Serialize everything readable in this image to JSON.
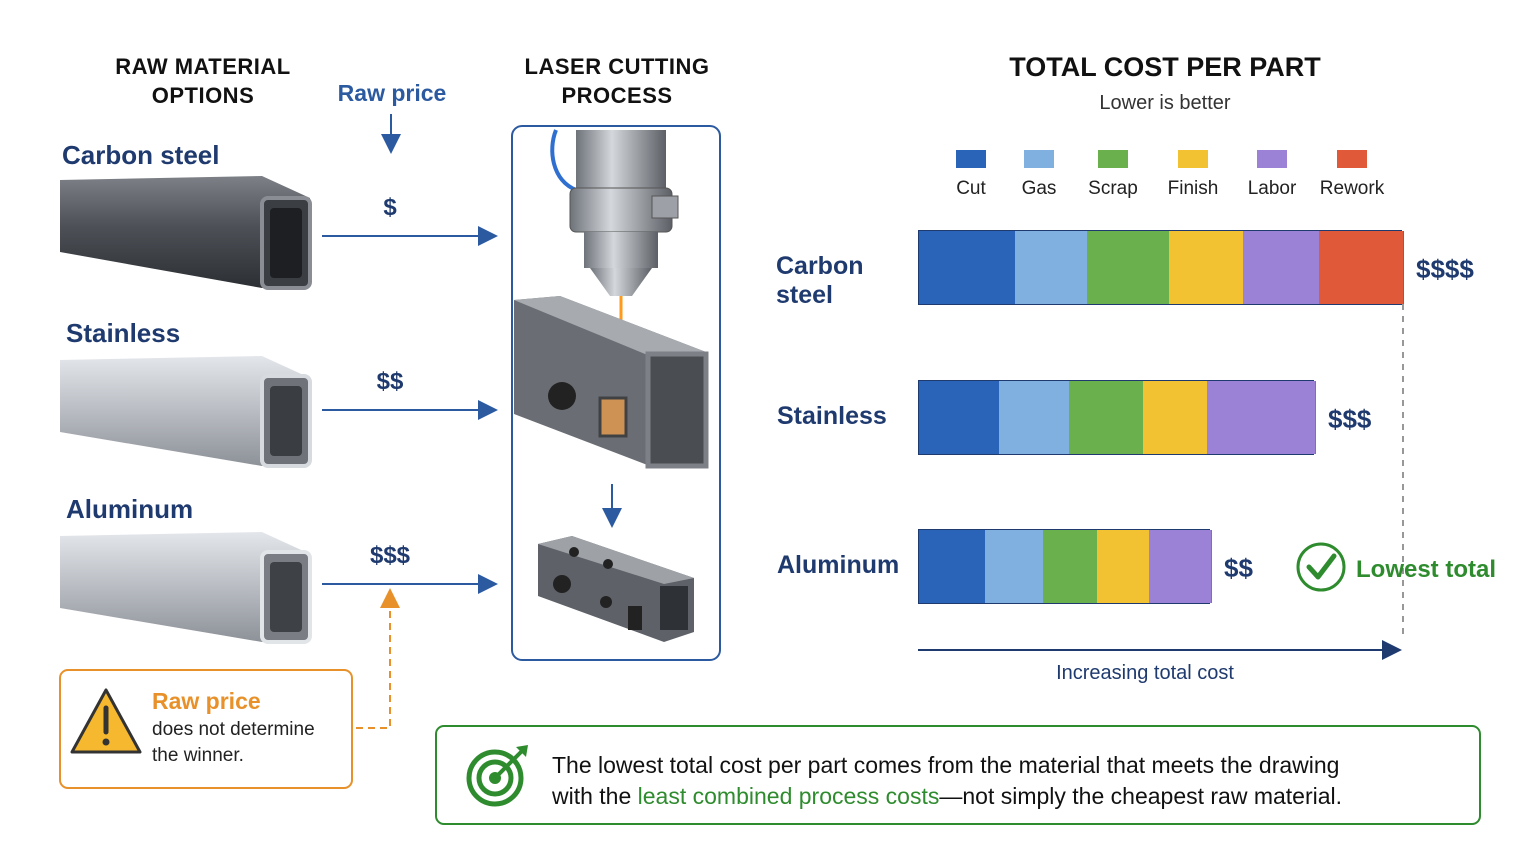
{
  "left": {
    "header_line1": "RAW MATERIAL",
    "header_line2": "OPTIONS",
    "raw_price_label": "Raw price",
    "materials": [
      {
        "name": "Carbon steel",
        "price": "$"
      },
      {
        "name": "Stainless",
        "price": "$$"
      },
      {
        "name": "Aluminum",
        "price": "$$$"
      }
    ],
    "warning": {
      "title": "Raw price",
      "line1": "does not determine",
      "line2": "the winner."
    }
  },
  "middle": {
    "header_line1": "LASER CUTTING",
    "header_line2": "PROCESS"
  },
  "chart": {
    "title": "TOTAL COST PER PART",
    "subtitle": "Lower is better",
    "x_axis_label": "Increasing total cost",
    "lowest_label": "Lowest total",
    "legend": [
      {
        "name": "Cut",
        "color": "#2a64b8"
      },
      {
        "name": "Gas",
        "color": "#7fb0e0"
      },
      {
        "name": "Scrap",
        "color": "#6ab04c"
      },
      {
        "name": "Finish",
        "color": "#f2c232"
      },
      {
        "name": "Labor",
        "color": "#9b82d6"
      },
      {
        "name": "Rework",
        "color": "#e05a3a"
      }
    ]
  },
  "chart_data": {
    "type": "bar",
    "orientation": "horizontal",
    "stacked": true,
    "title": "TOTAL COST PER PART",
    "subtitle": "Lower is better",
    "xlabel": "Increasing total cost",
    "categories": [
      "Carbon steel",
      "Stainless",
      "Aluminum"
    ],
    "total_labels": [
      "$$$$",
      "$$$",
      "$$"
    ],
    "series": [
      {
        "name": "Cut",
        "values": [
          96,
          80,
          66
        ]
      },
      {
        "name": "Gas",
        "values": [
          72,
          70,
          58
        ]
      },
      {
        "name": "Scrap",
        "values": [
          82,
          74,
          54
        ]
      },
      {
        "name": "Finish",
        "values": [
          74,
          64,
          52
        ]
      },
      {
        "name": "Labor",
        "values": [
          76,
          108,
          62
        ]
      },
      {
        "name": "Rework",
        "values": [
          84,
          0,
          0
        ]
      }
    ],
    "xlim": [
      0,
      484
    ],
    "annotation": "Lowest total"
  },
  "footer": {
    "line1": "The lowest total cost per part comes from the material that meets the drawing",
    "line2_prefix": "with the ",
    "line2_highlight": "least combined process costs",
    "line2_suffix": "—not simply the cheapest raw material."
  },
  "colors": {
    "navy": "#1f3a6e",
    "blue": "#2c5aa0",
    "orange": "#e8912a",
    "green": "#2e8b2e"
  }
}
